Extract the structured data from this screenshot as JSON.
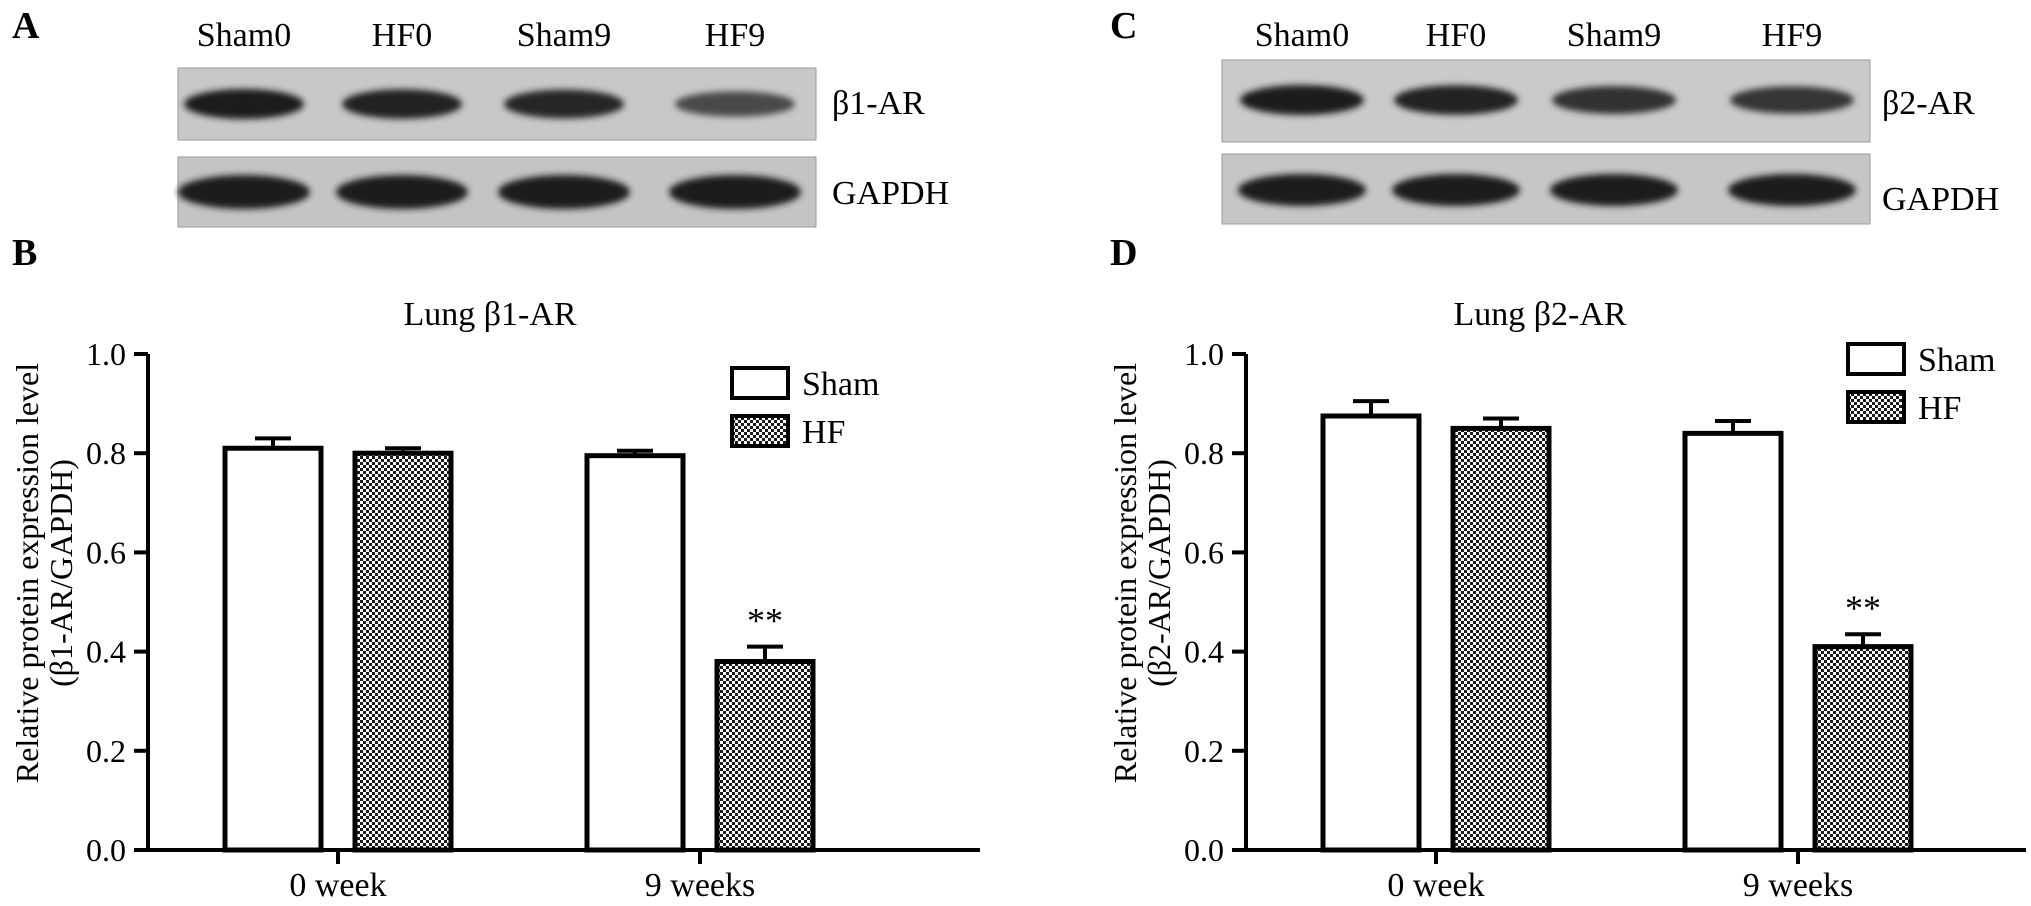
{
  "panel_letters": {
    "a": "A",
    "b": "B",
    "c": "C",
    "d": "D"
  },
  "blot_left": {
    "lanes": [
      "Sham0",
      "HF0",
      "Sham9",
      "HF9"
    ],
    "target_label": "β1-AR",
    "control_label": "GAPDH",
    "target_band_strength": [
      1.0,
      0.97,
      0.92,
      0.65
    ],
    "control_band_strength": [
      1.0,
      1.0,
      1.0,
      1.0
    ]
  },
  "blot_right": {
    "lanes": [
      "Sham0",
      "HF0",
      "Sham9",
      "HF9"
    ],
    "target_label": "β2-AR",
    "control_label": "GAPDH",
    "target_band_strength": [
      1.0,
      0.97,
      0.85,
      0.8
    ],
    "control_band_strength": [
      1.0,
      1.0,
      1.0,
      1.0
    ]
  },
  "chart_data": [
    {
      "type": "bar",
      "title": "Lung β1-AR",
      "ylabel_line1": "Relative protein expression level",
      "ylabel_line2": "(β1-AR/GAPDH)",
      "categories": [
        "0 week",
        "9 weeks"
      ],
      "series": [
        {
          "name": "Sham",
          "values": [
            0.81,
            0.795
          ],
          "errors": [
            0.02,
            0.01
          ]
        },
        {
          "name": "HF",
          "values": [
            0.8,
            0.38
          ],
          "errors": [
            0.01,
            0.03
          ]
        }
      ],
      "annotations": [
        {
          "category": "9 weeks",
          "series": "HF",
          "text": "**"
        }
      ],
      "ylim": [
        0,
        1.0
      ],
      "yticks": [
        "0.0",
        "0.2",
        "0.4",
        "0.6",
        "0.8",
        "1.0"
      ],
      "legend": "top-right",
      "grid": false
    },
    {
      "type": "bar",
      "title": "Lung β2-AR",
      "ylabel_line1": "Relative protein expression level",
      "ylabel_line2": "(β2-AR/GAPDH)",
      "categories": [
        "0 week",
        "9 weeks"
      ],
      "series": [
        {
          "name": "Sham",
          "values": [
            0.875,
            0.84
          ],
          "errors": [
            0.03,
            0.025
          ]
        },
        {
          "name": "HF",
          "values": [
            0.85,
            0.41
          ],
          "errors": [
            0.02,
            0.025
          ]
        }
      ],
      "annotations": [
        {
          "category": "9 weeks",
          "series": "HF",
          "text": "**"
        }
      ],
      "ylim": [
        0,
        1.0
      ],
      "yticks": [
        "0.0",
        "0.2",
        "0.4",
        "0.6",
        "0.8",
        "1.0"
      ],
      "legend": "top-right",
      "grid": false
    }
  ]
}
